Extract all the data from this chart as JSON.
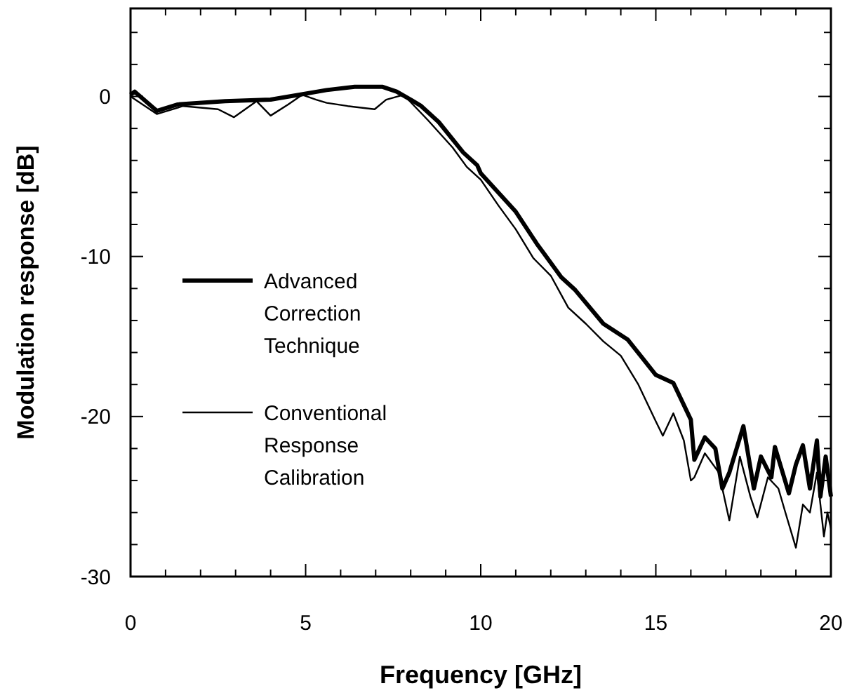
{
  "chart_data": {
    "type": "line",
    "xlabel": "Frequency [GHz]",
    "ylabel": "Modulation response [dB]",
    "xlim": [
      0,
      20
    ],
    "ylim": [
      -30,
      5.5
    ],
    "xticks": [
      0,
      {
        "value": 1,
        "label": null
      },
      {
        "value": 2,
        "label": null
      },
      {
        "value": 3,
        "label": null
      },
      {
        "value": 4,
        "label": null
      },
      5,
      {
        "value": 6,
        "label": null
      },
      {
        "value": 7,
        "label": null
      },
      {
        "value": 8,
        "label": null
      },
      {
        "value": 9,
        "label": null
      },
      10,
      {
        "value": 11,
        "label": null
      },
      {
        "value": 12,
        "label": null
      },
      {
        "value": 13,
        "label": null
      },
      {
        "value": 14,
        "label": null
      },
      15,
      {
        "value": 16,
        "label": null
      },
      {
        "value": 17,
        "label": null
      },
      {
        "value": 18,
        "label": null
      },
      {
        "value": 19,
        "label": null
      },
      20
    ],
    "yticks": [
      -30,
      {
        "value": -28,
        "label": null
      },
      {
        "value": -26,
        "label": null
      },
      {
        "value": -24,
        "label": null
      },
      {
        "value": -22,
        "label": null
      },
      -20,
      {
        "value": -18,
        "label": null
      },
      {
        "value": -16,
        "label": null
      },
      {
        "value": -14,
        "label": null
      },
      {
        "value": -12,
        "label": null
      },
      -10,
      {
        "value": -8,
        "label": null
      },
      {
        "value": -6,
        "label": null
      },
      {
        "value": -4,
        "label": null
      },
      {
        "value": -2,
        "label": null
      },
      0,
      {
        "value": 2,
        "label": null
      },
      {
        "value": 4,
        "label": null
      }
    ],
    "grid": false,
    "legend": "left",
    "line_style": "solid",
    "series": [
      {
        "name": "Advanced Correction Technique",
        "color": "#000000",
        "x": [
          0,
          0.12,
          0.75,
          1.35,
          2.7,
          4,
          4.8,
          5.6,
          6.4,
          7.2,
          7.6,
          8,
          8.3,
          8.8,
          9.5,
          9.9,
          10,
          11,
          11.6,
          11.8,
          12.3,
          12.7,
          13.5,
          14.2,
          15,
          15.5,
          16,
          16.1,
          16.4,
          16.7,
          16.9,
          17.1,
          17.5,
          17.8,
          18,
          18.3,
          18.4,
          18.8,
          19,
          19.2,
          19.4,
          19.6,
          19.7,
          19.85,
          20
        ],
        "values": [
          0.1,
          0.3,
          -0.9,
          -0.5,
          -0.3,
          -0.2,
          0.1,
          0.4,
          0.6,
          0.6,
          0.3,
          -0.2,
          -0.6,
          -1.6,
          -3.5,
          -4.3,
          -4.8,
          -7.2,
          -9.2,
          -9.8,
          -11.3,
          -12.1,
          -14.2,
          -15.2,
          -17.4,
          -17.9,
          -20.2,
          -22.7,
          -21.3,
          -22,
          -24.5,
          -23.5,
          -20.6,
          -24.5,
          -22.5,
          -23.8,
          -21.9,
          -24.8,
          -23,
          -21.8,
          -24.5,
          -21.5,
          -25,
          -22.5,
          -25
        ]
      },
      {
        "name": "Conventional Response Calibration",
        "color": "#000000",
        "x": [
          0,
          0.75,
          1.5,
          2.5,
          2.95,
          3.6,
          4,
          4.5,
          4.9,
          5.3,
          5.6,
          6.2,
          6.97,
          7.3,
          7.8,
          8.5,
          9.2,
          9.6,
          10,
          10.5,
          11,
          11.5,
          12,
          12.5,
          13,
          13.5,
          14,
          14.5,
          15,
          15.2,
          15.5,
          15.8,
          16,
          16.1,
          16.4,
          16.8,
          17.1,
          17.4,
          17.7,
          17.9,
          18.2,
          18.5,
          18.7,
          19,
          19.2,
          19.4,
          19.6,
          19.8,
          19.9,
          20
        ],
        "values": [
          0,
          -1.1,
          -0.6,
          -0.8,
          -1.3,
          -0.3,
          -1.2,
          -0.5,
          0.1,
          -0.2,
          -0.4,
          -0.6,
          -0.8,
          -0.2,
          0.1,
          -1.5,
          -3.2,
          -4.4,
          -5.2,
          -6.8,
          -8.3,
          -10.1,
          -11.2,
          -13.2,
          -14.2,
          -15.3,
          -16.2,
          -18,
          -20.3,
          -21.2,
          -19.8,
          -21.5,
          -24,
          -23.8,
          -22.3,
          -23.5,
          -26.5,
          -22.5,
          -25,
          -26.3,
          -23.8,
          -24.5,
          -26,
          -28.2,
          -25.5,
          -26,
          -23.5,
          -27.5,
          -26,
          -27
        ]
      }
    ]
  }
}
